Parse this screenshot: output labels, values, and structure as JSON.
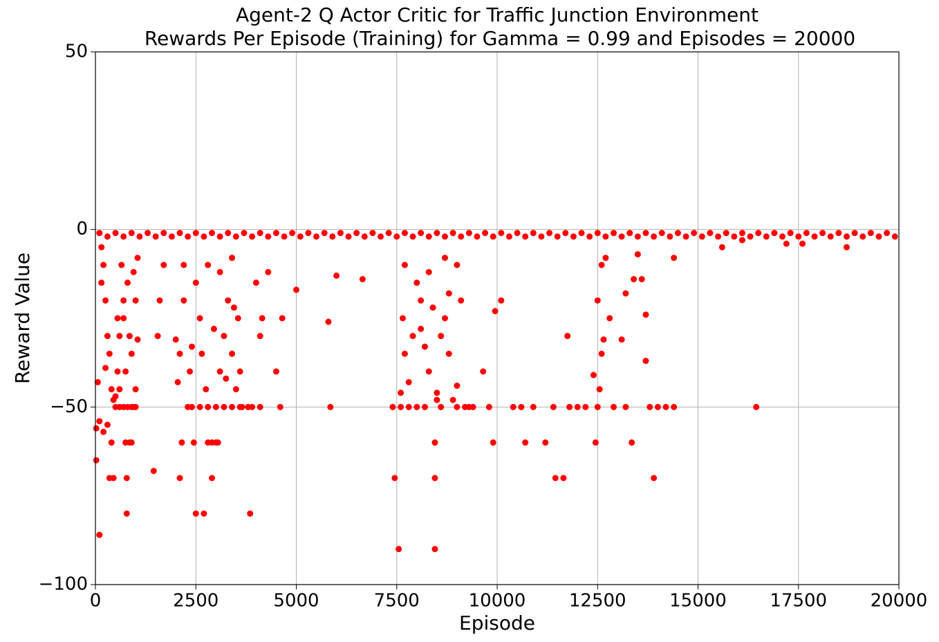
{
  "chart_data": {
    "type": "scatter",
    "title": "Agent-2 Q Actor Critic for Traffic Junction Environment",
    "subtitle": "Rewards Per Episode (Training) for Gamma = 0.99 and Episodes = 20000",
    "x_label": "Episode",
    "y_label": "Reward Value",
    "color": "#ff0000",
    "grid": true,
    "xlim": [
      0,
      20000
    ],
    "ylim": [
      -100,
      50
    ],
    "xticks": [
      0,
      2500,
      5000,
      7500,
      10000,
      12500,
      15000,
      17500,
      20000
    ],
    "yticks": [
      {
        "value": -100,
        "label": "−100"
      },
      {
        "value": -50,
        "label": "−50"
      },
      0,
      50
    ],
    "x": [
      100,
      300,
      500,
      700,
      900,
      1100,
      1300,
      1500,
      1700,
      1900,
      2100,
      2300,
      2500,
      2700,
      2900,
      3100,
      3300,
      3500,
      3700,
      3900,
      4100,
      4300,
      4500,
      4700,
      4900,
      5100,
      5300,
      5500,
      5700,
      5900,
      6100,
      6300,
      6500,
      6700,
      6900,
      7100,
      7300,
      7500,
      7700,
      7900,
      8100,
      8300,
      8500,
      8700,
      8900,
      9100,
      9300,
      9500,
      9700,
      9900,
      10100,
      10300,
      10500,
      10700,
      10900,
      11100,
      11300,
      11500,
      11700,
      11900,
      12100,
      12300,
      12500,
      12700,
      12900,
      13100,
      13300,
      13500,
      13700,
      13900,
      14100,
      14300,
      14500,
      14700,
      14900,
      15100,
      15300,
      15500,
      15700,
      15900,
      16100,
      16300,
      16500,
      16700,
      16900,
      17100,
      17300,
      17500,
      17700,
      17900,
      18100,
      18300,
      18500,
      18700,
      18900,
      19100,
      19300,
      19500,
      19700,
      19900,
      20,
      20,
      60,
      100,
      100,
      150,
      200,
      250,
      300,
      350,
      400,
      450,
      500,
      550,
      600,
      700,
      750,
      780,
      780,
      850,
      900,
      950,
      1000,
      1050,
      150,
      200,
      250,
      300,
      350,
      400,
      450,
      500,
      600,
      700,
      800,
      900,
      1000,
      650,
      700,
      800,
      900,
      1000,
      1050,
      550,
      600,
      750,
      850,
      950,
      1450,
      1550,
      1600,
      1700,
      2000,
      2050,
      2100,
      2150,
      2100,
      2200,
      2300,
      2400,
      2450,
      2500,
      2600,
      2700,
      2750,
      2800,
      2900,
      2900,
      3000,
      3050,
      3100,
      3200,
      3300,
      3400,
      3500,
      3550,
      3600,
      3650,
      3850,
      3900,
      4000,
      4100,
      4150,
      4500,
      4600,
      4650,
      4300,
      2200,
      2500,
      2800,
      3100,
      3400,
      2400,
      2600,
      2800,
      3000,
      3200,
      3400,
      3600,
      3800,
      4100,
      2350,
      2650,
      2950,
      3250,
      3450,
      5000,
      5800,
      5850,
      6000,
      6650,
      7400,
      7450,
      7550,
      7600,
      7650,
      7700,
      7800,
      7900,
      8000,
      8100,
      8200,
      8300,
      8450,
      8450,
      8450,
      8500,
      8500,
      8600,
      8700,
      8800,
      8900,
      9000,
      9100,
      9300,
      9650,
      9800,
      9900,
      9950,
      10100,
      7700,
      8000,
      8300,
      8700,
      9000,
      7600,
      7800,
      8200,
      8600,
      9000,
      9200,
      9400,
      8100,
      8400,
      8800,
      10400,
      10600,
      10700,
      10900,
      11200,
      11400,
      11450,
      11650,
      11750,
      11800,
      12000,
      12200,
      12400,
      12450,
      12500,
      12550,
      12600,
      12650,
      12800,
      12900,
      13100,
      13200,
      13350,
      13400,
      13600,
      13700,
      13700,
      13900,
      14000,
      14200,
      14400,
      12500,
      12600,
      12700,
      13500,
      14400,
      13800,
      13200,
      15600,
      16100,
      16450,
      17200,
      17600,
      18700
    ],
    "values": [
      -1,
      -2,
      -1,
      -2,
      -1,
      -2,
      -1,
      -2,
      -1,
      -2,
      -1,
      -2,
      -1,
      -2,
      -1,
      -2,
      -1,
      -2,
      -1,
      -2,
      -1,
      -2,
      -1,
      -2,
      -1,
      -2,
      -1,
      -2,
      -1,
      -2,
      -1,
      -2,
      -1,
      -2,
      -1,
      -2,
      -1,
      -2,
      -1,
      -2,
      -1,
      -2,
      -1,
      -2,
      -1,
      -2,
      -1,
      -2,
      -1,
      -2,
      -1,
      -2,
      -1,
      -2,
      -1,
      -2,
      -1,
      -2,
      -1,
      -2,
      -1,
      -2,
      -1,
      -2,
      -1,
      -2,
      -1,
      -2,
      -1,
      -2,
      -1,
      -2,
      -1,
      -2,
      -1,
      -2,
      -1,
      -2,
      -1,
      -2,
      -1,
      -2,
      -1,
      -2,
      -1,
      -2,
      -1,
      -2,
      -1,
      -2,
      -1,
      -2,
      -1,
      -2,
      -1,
      -2,
      -1,
      -2,
      -1,
      -2,
      -56,
      -65,
      -43,
      -86,
      -54,
      -15,
      -57,
      -39,
      -55,
      -70,
      -60,
      -70,
      -47,
      -40,
      -30,
      -20,
      -60,
      -80,
      -70,
      -60,
      -60,
      -50,
      -45,
      -31,
      -5,
      -10,
      -20,
      -30,
      -35,
      -45,
      -48,
      -50,
      -50,
      -50,
      -50,
      -50,
      -50,
      -10,
      -25,
      -15,
      -35,
      -20,
      -8,
      -25,
      -45,
      -40,
      -30,
      -12,
      -68,
      -30,
      -20,
      -10,
      -31,
      -43,
      -35,
      -60,
      -70,
      -20,
      -50,
      -33,
      -60,
      -80,
      -25,
      -80,
      -45,
      -60,
      -70,
      -60,
      -60,
      -60,
      -40,
      -30,
      -20,
      -35,
      -45,
      -25,
      -40,
      -50,
      -80,
      -50,
      -15,
      -30,
      -25,
      -40,
      -50,
      -25,
      -12,
      -10,
      -15,
      -10,
      -12,
      -8,
      -50,
      -50,
      -50,
      -50,
      -50,
      -50,
      -50,
      -50,
      -50,
      -40,
      -35,
      -28,
      -42,
      -22,
      -17,
      -26,
      -50,
      -13,
      -14,
      -50,
      -70,
      -90,
      -46,
      -25,
      -35,
      -43,
      -30,
      -50,
      -20,
      -33,
      -40,
      -60,
      -70,
      -90,
      -46,
      -48,
      -30,
      -25,
      -35,
      -48,
      -44,
      -20,
      -50,
      -40,
      -50,
      -60,
      -23,
      -20,
      -10,
      -15,
      -12,
      -8,
      -10,
      -50,
      -50,
      -50,
      -50,
      -50,
      -50,
      -50,
      -28,
      -22,
      -18,
      -50,
      -50,
      -60,
      -50,
      -60,
      -50,
      -70,
      -70,
      -30,
      -50,
      -50,
      -50,
      -41,
      -60,
      -50,
      -45,
      -35,
      -31,
      -25,
      -50,
      -31,
      -18,
      -60,
      -14,
      -14,
      -24,
      -37,
      -70,
      -50,
      -50,
      -50,
      -20,
      -10,
      -8,
      -7,
      -8,
      -50,
      -50,
      -5,
      -3,
      -50,
      -4,
      -4,
      -5
    ]
  }
}
